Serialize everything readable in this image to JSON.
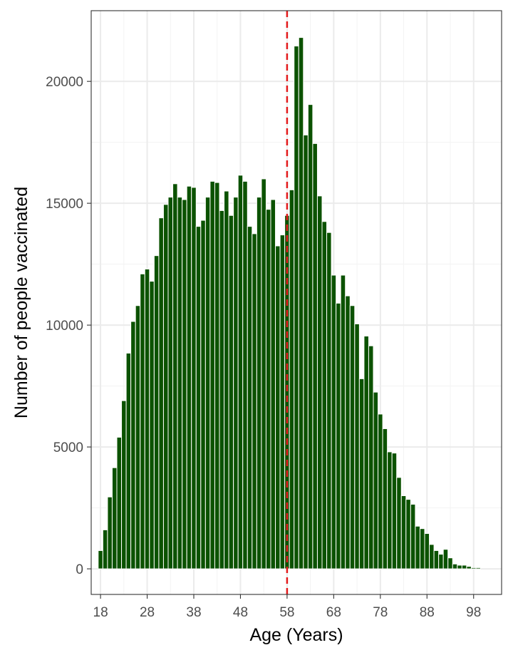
{
  "colors": {
    "bar_fill": "#0b5200",
    "bar_stroke": "#ffffff",
    "reference_line": "#e31a1c",
    "panel_border": "#333333",
    "grid_major": "#ebebeb",
    "grid_minor": "#f3f3f3",
    "tick_text": "#4d4d4d",
    "axis_title": "#000000"
  },
  "chart_data": {
    "type": "bar",
    "xlabel": "Age (Years)",
    "ylabel": "Number of people vaccinated",
    "x_ticks": [
      18,
      28,
      38,
      48,
      58,
      68,
      78,
      88,
      98
    ],
    "y_ticks": [
      0,
      5000,
      10000,
      15000,
      20000
    ],
    "xlim": [
      16,
      104
    ],
    "ylim": [
      -1050,
      22900
    ],
    "grid": true,
    "legend": "none",
    "reference_line": {
      "x": 58,
      "style": "dashed"
    },
    "x": [
      18,
      19,
      20,
      21,
      22,
      23,
      24,
      25,
      26,
      27,
      28,
      29,
      30,
      31,
      32,
      33,
      34,
      35,
      36,
      37,
      38,
      39,
      40,
      41,
      42,
      43,
      44,
      45,
      46,
      47,
      48,
      49,
      50,
      51,
      52,
      53,
      54,
      55,
      56,
      57,
      58,
      59,
      60,
      61,
      62,
      63,
      64,
      65,
      66,
      67,
      68,
      69,
      70,
      71,
      72,
      73,
      74,
      75,
      76,
      77,
      78,
      79,
      80,
      81,
      82,
      83,
      84,
      85,
      86,
      87,
      88,
      89,
      90,
      91,
      92,
      93,
      94,
      95,
      96,
      97,
      98,
      99
    ],
    "values": [
      750,
      1600,
      2950,
      4150,
      5400,
      6900,
      8850,
      10150,
      10800,
      12100,
      12300,
      11800,
      12850,
      14400,
      14950,
      15250,
      15800,
      15250,
      15150,
      15700,
      15650,
      14050,
      14300,
      15250,
      15900,
      15850,
      14700,
      15500,
      14500,
      15250,
      16150,
      15900,
      14050,
      13750,
      15250,
      16000,
      14750,
      15150,
      13250,
      13700,
      14500,
      15550,
      21450,
      21800,
      17800,
      19050,
      17450,
      15300,
      14250,
      13800,
      12050,
      10900,
      12050,
      11200,
      10800,
      10050,
      7800,
      9550,
      9150,
      7250,
      6350,
      5750,
      4800,
      4750,
      3750,
      3000,
      2850,
      2650,
      1750,
      1650,
      1450,
      1000,
      750,
      600,
      800,
      450,
      200,
      150,
      150,
      100,
      50,
      50
    ]
  }
}
